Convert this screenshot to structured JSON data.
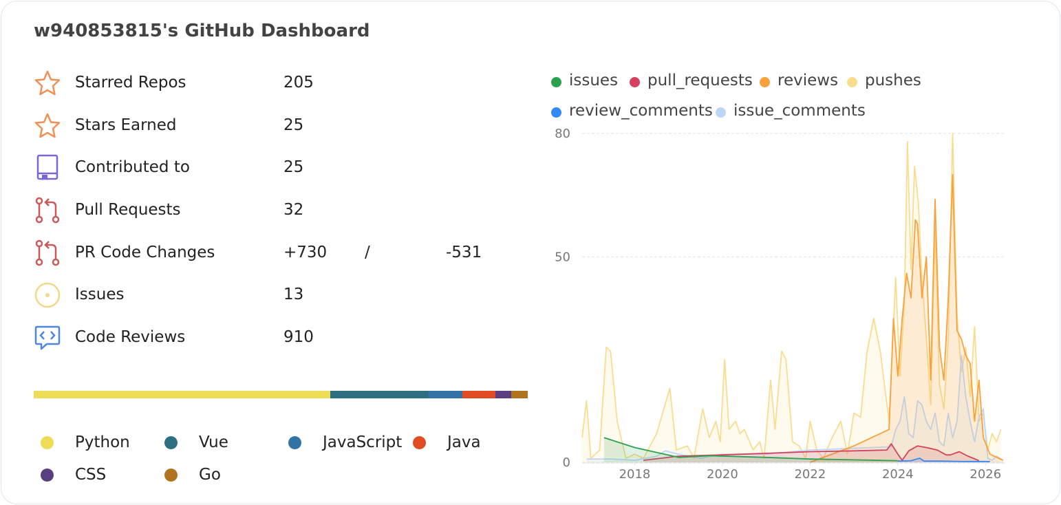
{
  "title": "w940853815's GitHub Dashboard",
  "stats": [
    {
      "key": "starred",
      "label": "Starred Repos",
      "value": "205",
      "icon": "star-icon",
      "color": "#f28f55"
    },
    {
      "key": "stars_earned",
      "label": "Stars Earned",
      "value": "25",
      "icon": "star-icon",
      "color": "#f28f55"
    },
    {
      "key": "contributed",
      "label": "Contributed to",
      "value": "25",
      "icon": "repo-icon",
      "color": "#7b64d6"
    },
    {
      "key": "pull_requests",
      "label": "Pull Requests",
      "value": "32",
      "icon": "pull-request-icon",
      "color": "#c9595a"
    },
    {
      "key": "pr_changes",
      "label": "PR Code Changes",
      "additions": "+730",
      "separator": "/",
      "deletions": "-531",
      "icon": "pull-request-icon",
      "color": "#c9595a"
    },
    {
      "key": "issues",
      "label": "Issues",
      "value": "13",
      "icon": "issue-icon",
      "color": "#f5d78a"
    },
    {
      "key": "code_reviews",
      "label": "Code Reviews",
      "value": "910",
      "icon": "code-review-icon",
      "color": "#4f86e0"
    }
  ],
  "languages": [
    {
      "name": "Python",
      "color": "#eedc55",
      "share": 0.6
    },
    {
      "name": "Vue",
      "color": "#2c6f80",
      "share": 0.2
    },
    {
      "name": "JavaScript",
      "color": "#3272a5",
      "share": 0.067
    },
    {
      "name": "Java",
      "color": "#e04b24",
      "share": 0.067
    },
    {
      "name": "CSS",
      "color": "#583f80",
      "share": 0.033
    },
    {
      "name": "Go",
      "color": "#b0741f",
      "share": 0.033
    }
  ],
  "chart_data": {
    "type": "area",
    "y_ticks": [
      "0",
      "50",
      "80"
    ],
    "x_ticks": [
      "2018",
      "2020",
      "2022",
      "2024",
      "2026"
    ],
    "ylim": [
      0,
      80
    ],
    "xlim": [
      2016.8,
      2026.45
    ],
    "grid": "horizontal dashed",
    "legend_position": "top",
    "series": [
      {
        "name": "issues",
        "color": "#2aa24d",
        "points": [
          [
            2017.3,
            6
          ],
          [
            2018.0,
            3.6
          ],
          [
            2019.0,
            1.2
          ],
          [
            2019.7,
            1.6
          ],
          [
            2021.0,
            1.2
          ],
          [
            2022.0,
            0.8
          ],
          [
            2023.0,
            0.6
          ],
          [
            2024.0,
            0.4
          ]
        ]
      },
      {
        "name": "pull_requests",
        "color": "#d4405e",
        "points": [
          [
            2018.2,
            0.5
          ],
          [
            2019.0,
            1.5
          ],
          [
            2020.0,
            1.8
          ],
          [
            2021.0,
            2.2
          ],
          [
            2022.0,
            2.6
          ],
          [
            2023.0,
            2.8
          ],
          [
            2023.75,
            3.0
          ],
          [
            2023.85,
            4.5
          ],
          [
            2024.0,
            2.0
          ],
          [
            2024.1,
            0.5
          ],
          [
            2024.25,
            2.8
          ],
          [
            2024.45,
            4.0
          ],
          [
            2024.7,
            3.5
          ],
          [
            2024.9,
            3.0
          ],
          [
            2025.1,
            1.8
          ],
          [
            2025.2,
            1.8
          ],
          [
            2025.4,
            2.6
          ],
          [
            2025.6,
            1.5
          ],
          [
            2025.85,
            0.4
          ]
        ]
      },
      {
        "name": "reviews",
        "color": "#f9a13b",
        "points": [
          [
            2022.0,
            0
          ],
          [
            2023.0,
            4
          ],
          [
            2023.8,
            8
          ],
          [
            2023.9,
            35
          ],
          [
            2024.0,
            21
          ],
          [
            2024.1,
            35
          ],
          [
            2024.2,
            46
          ],
          [
            2024.3,
            40
          ],
          [
            2024.4,
            59
          ],
          [
            2024.45,
            58
          ],
          [
            2024.55,
            40
          ],
          [
            2024.65,
            50
          ],
          [
            2024.75,
            20
          ],
          [
            2024.85,
            64
          ],
          [
            2024.95,
            28
          ],
          [
            2025.05,
            20
          ],
          [
            2025.15,
            40
          ],
          [
            2025.25,
            70
          ],
          [
            2025.35,
            32
          ],
          [
            2025.45,
            30
          ],
          [
            2025.55,
            26
          ],
          [
            2025.65,
            24
          ],
          [
            2025.75,
            10
          ],
          [
            2025.85,
            20
          ],
          [
            2025.95,
            6
          ],
          [
            2026.1,
            2
          ],
          [
            2026.4,
            0.5
          ]
        ]
      },
      {
        "name": "pushes",
        "color": "#f9dc8f",
        "points": [
          [
            2016.8,
            6
          ],
          [
            2016.9,
            15
          ],
          [
            2017.0,
            1
          ],
          [
            2017.2,
            3
          ],
          [
            2017.35,
            28
          ],
          [
            2017.45,
            27
          ],
          [
            2017.6,
            10
          ],
          [
            2017.8,
            1
          ],
          [
            2018.0,
            2
          ],
          [
            2018.2,
            1
          ],
          [
            2018.5,
            7
          ],
          [
            2018.8,
            18
          ],
          [
            2018.95,
            3
          ],
          [
            2019.2,
            4
          ],
          [
            2019.35,
            1
          ],
          [
            2019.55,
            13
          ],
          [
            2019.7,
            6
          ],
          [
            2019.85,
            10
          ],
          [
            2019.95,
            5
          ],
          [
            2020.05,
            25
          ],
          [
            2020.15,
            8
          ],
          [
            2020.3,
            10
          ],
          [
            2020.4,
            7
          ],
          [
            2020.5,
            8
          ],
          [
            2020.7,
            3
          ],
          [
            2020.85,
            5
          ],
          [
            2020.95,
            1
          ],
          [
            2021.1,
            20
          ],
          [
            2021.2,
            8
          ],
          [
            2021.35,
            27
          ],
          [
            2021.45,
            25
          ],
          [
            2021.6,
            5
          ],
          [
            2021.75,
            4
          ],
          [
            2021.9,
            1
          ],
          [
            2022.0,
            10
          ],
          [
            2022.15,
            3
          ],
          [
            2022.3,
            1
          ],
          [
            2022.5,
            6
          ],
          [
            2022.7,
            10
          ],
          [
            2022.85,
            2
          ],
          [
            2023.0,
            12
          ],
          [
            2023.15,
            11
          ],
          [
            2023.3,
            27
          ],
          [
            2023.45,
            35
          ],
          [
            2023.6,
            27
          ],
          [
            2023.8,
            10
          ],
          [
            2023.95,
            45
          ],
          [
            2024.05,
            21
          ],
          [
            2024.15,
            39
          ],
          [
            2024.22,
            78
          ],
          [
            2024.3,
            47
          ],
          [
            2024.38,
            72
          ],
          [
            2024.47,
            63
          ],
          [
            2024.55,
            45
          ],
          [
            2024.65,
            30
          ],
          [
            2024.75,
            14
          ],
          [
            2024.85,
            57
          ],
          [
            2024.95,
            19
          ],
          [
            2025.05,
            13
          ],
          [
            2025.15,
            30
          ],
          [
            2025.25,
            80
          ],
          [
            2025.35,
            36
          ],
          [
            2025.45,
            22
          ],
          [
            2025.55,
            28
          ],
          [
            2025.65,
            16
          ],
          [
            2025.75,
            33
          ],
          [
            2025.85,
            10
          ],
          [
            2025.95,
            12
          ],
          [
            2026.05,
            3
          ],
          [
            2026.15,
            7
          ],
          [
            2026.25,
            5
          ],
          [
            2026.35,
            8
          ]
        ]
      },
      {
        "name": "review_comments",
        "color": "#3389f5",
        "points": [
          [
            2024.0,
            0.3
          ],
          [
            2024.3,
            0.4
          ],
          [
            2024.5,
            1.0
          ],
          [
            2024.6,
            0.3
          ],
          [
            2025.0,
            0.3
          ],
          [
            2025.5,
            0.2
          ],
          [
            2026.1,
            0.2
          ]
        ]
      },
      {
        "name": "issue_comments",
        "color": "#bdd6f8",
        "points": [
          [
            2016.9,
            0.8
          ],
          [
            2017.5,
            0.8
          ],
          [
            2018.0,
            0.5
          ],
          [
            2018.5,
            1.5
          ],
          [
            2018.7,
            2.8
          ],
          [
            2019.0,
            2.0
          ],
          [
            2019.5,
            1.0
          ],
          [
            2020.0,
            2.0
          ],
          [
            2021.0,
            2.0
          ],
          [
            2022.0,
            3.0
          ],
          [
            2023.0,
            3.4
          ],
          [
            2023.85,
            3.8
          ],
          [
            2023.95,
            8
          ],
          [
            2024.05,
            10
          ],
          [
            2024.15,
            16
          ],
          [
            2024.25,
            7
          ],
          [
            2024.35,
            6
          ],
          [
            2024.45,
            15
          ],
          [
            2024.55,
            14
          ],
          [
            2024.65,
            10
          ],
          [
            2024.75,
            8
          ],
          [
            2024.85,
            12
          ],
          [
            2024.95,
            5
          ],
          [
            2025.05,
            4
          ],
          [
            2025.15,
            12
          ],
          [
            2025.25,
            6
          ],
          [
            2025.35,
            10
          ],
          [
            2025.45,
            26
          ],
          [
            2025.55,
            16
          ],
          [
            2025.65,
            10
          ],
          [
            2025.75,
            5
          ],
          [
            2025.85,
            11
          ],
          [
            2025.95,
            13
          ],
          [
            2026.05,
            1
          ],
          [
            2026.15,
            0.5
          ],
          [
            2026.25,
            1.5
          ],
          [
            2026.4,
            0.5
          ]
        ]
      }
    ]
  }
}
